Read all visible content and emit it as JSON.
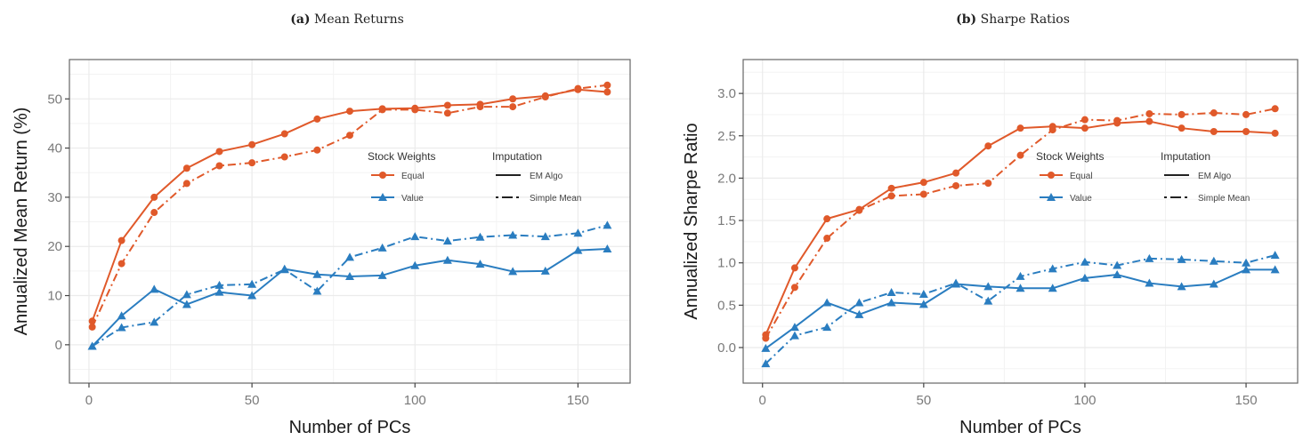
{
  "colors": {
    "equal": "#e0592a",
    "value": "#2a7dc0",
    "grid": "#ebebeb",
    "axis": "#555555"
  },
  "chart_data": [
    {
      "type": "line",
      "panel_label": "(a)",
      "title": "Mean Returns",
      "xlabel": "Number of PCs",
      "ylabel": "Annualized Mean Return (%)",
      "xlim": [
        -6,
        166
      ],
      "ylim": [
        -7.8,
        58
      ],
      "xticks": [
        0,
        50,
        100,
        150
      ],
      "yticks": [
        0,
        10,
        20,
        30,
        40,
        50
      ],
      "grid": true,
      "legend": {
        "position": "center-right",
        "stock_title": "Stock Weights",
        "imputation_title": "Imputation",
        "stock_items": [
          "Equal",
          "Value"
        ],
        "imputation_items": [
          "EM Algo",
          "Simple Mean"
        ]
      },
      "x": [
        1,
        10,
        20,
        30,
        40,
        50,
        60,
        70,
        80,
        90,
        100,
        110,
        120,
        130,
        140,
        150,
        159
      ],
      "series": [
        {
          "name": "Equal - EM Algo",
          "weights": "Equal",
          "imputation": "EM Algo",
          "values": [
            4.8,
            21.2,
            30.0,
            35.9,
            39.3,
            40.7,
            42.9,
            45.9,
            47.5,
            48.0,
            48.1,
            48.7,
            48.9,
            50.0,
            50.6,
            51.9,
            51.4
          ]
        },
        {
          "name": "Equal - Simple Mean",
          "weights": "Equal",
          "imputation": "Simple Mean",
          "values": [
            3.6,
            16.5,
            26.9,
            32.8,
            36.4,
            37.0,
            38.2,
            39.6,
            42.6,
            47.8,
            47.8,
            47.1,
            48.4,
            48.4,
            50.4,
            52.1,
            52.8
          ]
        },
        {
          "name": "Value - EM Algo",
          "weights": "Value",
          "imputation": "EM Algo",
          "values": [
            -0.3,
            5.9,
            11.3,
            8.2,
            10.7,
            10.0,
            15.4,
            14.3,
            13.9,
            14.1,
            16.1,
            17.2,
            16.4,
            14.9,
            15.0,
            19.2,
            19.5
          ]
        },
        {
          "name": "Value - Simple Mean",
          "weights": "Value",
          "imputation": "Simple Mean",
          "values": [
            -0.3,
            3.5,
            4.6,
            10.2,
            12.1,
            12.3,
            15.3,
            10.9,
            17.8,
            19.7,
            22.0,
            21.1,
            21.9,
            22.3,
            22.0,
            22.7,
            24.3
          ]
        }
      ]
    },
    {
      "type": "line",
      "panel_label": "(b)",
      "title": "Sharpe Ratios",
      "xlabel": "Number of PCs",
      "ylabel": "Annualized Sharpe Ratio",
      "xlim": [
        -6,
        166
      ],
      "ylim": [
        -0.42,
        3.4
      ],
      "xticks": [
        0,
        50,
        100,
        150
      ],
      "yticks": [
        0.0,
        0.5,
        1.0,
        1.5,
        2.0,
        2.5,
        3.0
      ],
      "ytick_labels": [
        "0.0",
        "0.5",
        "1.0",
        "1.5",
        "2.0",
        "2.5",
        "3.0"
      ],
      "grid": true,
      "legend": {
        "position": "center-right",
        "stock_title": "Stock Weights",
        "imputation_title": "Imputation",
        "stock_items": [
          "Equal",
          "Value"
        ],
        "imputation_items": [
          "EM Algo",
          "Simple Mean"
        ]
      },
      "x": [
        1,
        10,
        20,
        30,
        40,
        50,
        60,
        70,
        80,
        90,
        100,
        110,
        120,
        130,
        140,
        150,
        159
      ],
      "series": [
        {
          "name": "Equal - EM Algo",
          "weights": "Equal",
          "imputation": "EM Algo",
          "values": [
            0.15,
            0.94,
            1.52,
            1.63,
            1.88,
            1.95,
            2.06,
            2.38,
            2.59,
            2.61,
            2.59,
            2.65,
            2.67,
            2.59,
            2.55,
            2.55,
            2.53
          ]
        },
        {
          "name": "Equal - Simple Mean",
          "weights": "Equal",
          "imputation": "Simple Mean",
          "values": [
            0.11,
            0.71,
            1.29,
            1.62,
            1.79,
            1.81,
            1.91,
            1.94,
            2.27,
            2.57,
            2.69,
            2.68,
            2.76,
            2.75,
            2.77,
            2.75,
            2.82
          ]
        },
        {
          "name": "Value - EM Algo",
          "weights": "Value",
          "imputation": "EM Algo",
          "values": [
            -0.01,
            0.24,
            0.53,
            0.39,
            0.53,
            0.51,
            0.75,
            0.72,
            0.7,
            0.7,
            0.82,
            0.86,
            0.76,
            0.72,
            0.75,
            0.92,
            0.92
          ]
        },
        {
          "name": "Value - Simple Mean",
          "weights": "Value",
          "imputation": "Simple Mean",
          "values": [
            -0.19,
            0.14,
            0.24,
            0.53,
            0.65,
            0.63,
            0.76,
            0.55,
            0.84,
            0.93,
            1.01,
            0.97,
            1.05,
            1.04,
            1.02,
            1.0,
            1.09
          ]
        }
      ]
    }
  ]
}
